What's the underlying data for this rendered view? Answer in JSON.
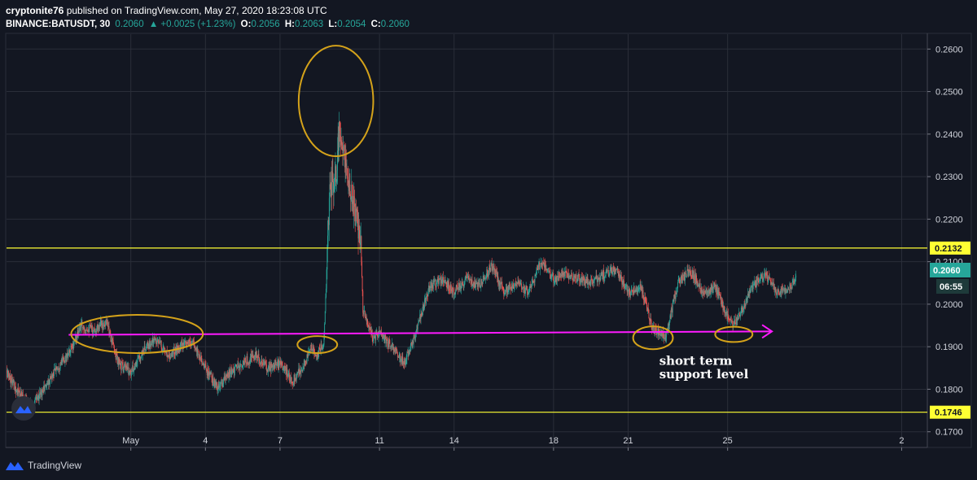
{
  "header": {
    "publisher": "cryptonite76",
    "published_line": "published on TradingView.com, May 27, 2020 18:23:08 UTC",
    "symbol": "BINANCE:BATUSDT, 30",
    "last": "0.2060",
    "change": "▲ +0.0025 (+1.23%)",
    "o_label": "O:",
    "o": "0.2056",
    "h_label": "H:",
    "h": "0.2063",
    "l_label": "L:",
    "l": "0.2054",
    "c_label": "C:",
    "c": "0.2060"
  },
  "footer": {
    "brand": "TradingView"
  },
  "price_tag": {
    "price": "0.2060",
    "countdown": "06:55",
    "color": "#26a69a"
  },
  "colors": {
    "up": "#26a69a",
    "down": "#ef5350",
    "level": "#ffff33",
    "trend": "#ff1aff",
    "circle": "#d4a21a",
    "background": "#131722"
  },
  "chart_data": {
    "type": "candlestick",
    "timeframe": "30",
    "x_range": [
      "2020-04-26",
      "2020-06-02"
    ],
    "ylim": [
      0.1665,
      0.2635
    ],
    "y_ticks": [
      0.17,
      0.18,
      0.19,
      0.2,
      0.21,
      0.22,
      0.23,
      0.24,
      0.25,
      0.26
    ],
    "y_tick_labels": [
      "0.1700",
      "0.1800",
      "0.1900",
      "0.2000",
      "0.2100",
      "0.2200",
      "0.2300",
      "0.2400",
      "0.2500",
      "0.2600"
    ],
    "x_ticks": [
      {
        "date": "2020-05-01",
        "label": "May"
      },
      {
        "date": "2020-05-04",
        "label": "4"
      },
      {
        "date": "2020-05-07",
        "label": "7"
      },
      {
        "date": "2020-05-11",
        "label": "11"
      },
      {
        "date": "2020-05-14",
        "label": "14"
      },
      {
        "date": "2020-05-18",
        "label": "18"
      },
      {
        "date": "2020-05-21",
        "label": "21"
      },
      {
        "date": "2020-05-25",
        "label": "25"
      },
      {
        "date": "2020-06-01",
        "label": "2"
      }
    ],
    "price_path": [
      [
        "2020-04-26 00:00",
        0.184
      ],
      [
        "2020-04-26 12:00",
        0.179
      ],
      [
        "2020-04-27 00:00",
        0.176
      ],
      [
        "2020-04-27 12:00",
        0.18
      ],
      [
        "2020-04-28 00:00",
        0.185
      ],
      [
        "2020-04-28 12:00",
        0.188
      ],
      [
        "2020-04-29 00:00",
        0.195
      ],
      [
        "2020-04-29 12:00",
        0.194
      ],
      [
        "2020-04-30 00:00",
        0.196
      ],
      [
        "2020-04-30 12:00",
        0.186
      ],
      [
        "2020-05-01 00:00",
        0.184
      ],
      [
        "2020-05-01 12:00",
        0.189
      ],
      [
        "2020-05-02 00:00",
        0.192
      ],
      [
        "2020-05-02 12:00",
        0.188
      ],
      [
        "2020-05-03 00:00",
        0.19
      ],
      [
        "2020-05-03 12:00",
        0.191
      ],
      [
        "2020-05-04 00:00",
        0.185
      ],
      [
        "2020-05-04 12:00",
        0.18
      ],
      [
        "2020-05-05 00:00",
        0.184
      ],
      [
        "2020-05-05 12:00",
        0.186
      ],
      [
        "2020-05-06 00:00",
        0.188
      ],
      [
        "2020-05-06 12:00",
        0.185
      ],
      [
        "2020-05-07 00:00",
        0.186
      ],
      [
        "2020-05-07 12:00",
        0.182
      ],
      [
        "2020-05-08 00:00",
        0.186
      ],
      [
        "2020-05-08 06:00",
        0.19
      ],
      [
        "2020-05-08 12:00",
        0.188
      ],
      [
        "2020-05-08 18:00",
        0.191
      ],
      [
        "2020-05-08 22:00",
        0.213
      ],
      [
        "2020-05-09 00:00",
        0.228
      ],
      [
        "2020-05-09 06:00",
        0.23
      ],
      [
        "2020-05-09 09:00",
        0.241
      ],
      [
        "2020-05-09 12:00",
        0.236
      ],
      [
        "2020-05-09 18:00",
        0.23
      ],
      [
        "2020-05-10 00:00",
        0.222
      ],
      [
        "2020-05-10 06:00",
        0.216
      ],
      [
        "2020-05-10 08:00",
        0.199
      ],
      [
        "2020-05-10 12:00",
        0.196
      ],
      [
        "2020-05-10 18:00",
        0.192
      ],
      [
        "2020-05-11 00:00",
        0.193
      ],
      [
        "2020-05-11 12:00",
        0.19
      ],
      [
        "2020-05-12 00:00",
        0.186
      ],
      [
        "2020-05-12 12:00",
        0.194
      ],
      [
        "2020-05-13 00:00",
        0.204
      ],
      [
        "2020-05-13 12:00",
        0.206
      ],
      [
        "2020-05-14 00:00",
        0.203
      ],
      [
        "2020-05-14 12:00",
        0.206
      ],
      [
        "2020-05-15 00:00",
        0.204
      ],
      [
        "2020-05-15 12:00",
        0.209
      ],
      [
        "2020-05-16 00:00",
        0.203
      ],
      [
        "2020-05-16 12:00",
        0.205
      ],
      [
        "2020-05-17 00:00",
        0.203
      ],
      [
        "2020-05-17 12:00",
        0.21
      ],
      [
        "2020-05-18 00:00",
        0.206
      ],
      [
        "2020-05-18 12:00",
        0.207
      ],
      [
        "2020-05-19 00:00",
        0.206
      ],
      [
        "2020-05-19 12:00",
        0.205
      ],
      [
        "2020-05-20 00:00",
        0.207
      ],
      [
        "2020-05-20 12:00",
        0.208
      ],
      [
        "2020-05-21 00:00",
        0.203
      ],
      [
        "2020-05-21 12:00",
        0.204
      ],
      [
        "2020-05-22 00:00",
        0.194
      ],
      [
        "2020-05-22 12:00",
        0.192
      ],
      [
        "2020-05-23 00:00",
        0.205
      ],
      [
        "2020-05-23 12:00",
        0.208
      ],
      [
        "2020-05-24 00:00",
        0.203
      ],
      [
        "2020-05-24 12:00",
        0.204
      ],
      [
        "2020-05-25 00:00",
        0.197
      ],
      [
        "2020-05-25 06:00",
        0.195
      ],
      [
        "2020-05-25 12:00",
        0.198
      ],
      [
        "2020-05-26 00:00",
        0.204
      ],
      [
        "2020-05-26 12:00",
        0.207
      ],
      [
        "2020-05-27 00:00",
        0.203
      ],
      [
        "2020-05-27 12:00",
        0.204
      ],
      [
        "2020-05-27 18:00",
        0.206
      ]
    ],
    "horizontal_levels": [
      {
        "price": 0.2132,
        "label": "0.2132"
      },
      {
        "price": 0.1746,
        "label": "0.1746"
      }
    ],
    "trend_arrow": {
      "from": [
        "2020-04-28 12:00",
        0.1928
      ],
      "to": [
        "2020-05-26 18:00",
        0.1936
      ]
    },
    "annotations": [
      {
        "type": "ellipse",
        "center": [
          "2020-05-01 06:00",
          0.193
        ],
        "rx_days": 2.65,
        "ry": 0.0045
      },
      {
        "type": "ellipse",
        "center": [
          "2020-05-08 12:00",
          0.1905
        ],
        "rx_days": 0.8,
        "ry": 0.002
      },
      {
        "type": "ellipse",
        "center": [
          "2020-05-09 06:00",
          0.2478
        ],
        "rx_days": 1.5,
        "ry": 0.013
      },
      {
        "type": "ellipse",
        "center": [
          "2020-05-22 00:00",
          0.1921
        ],
        "rx_days": 0.8,
        "ry": 0.0027
      },
      {
        "type": "ellipse",
        "center": [
          "2020-05-25 06:00",
          0.1929
        ],
        "rx_days": 0.75,
        "ry": 0.0018
      }
    ],
    "text_annotations": [
      {
        "text": "short term",
        "at": [
          "2020-05-22 06:00",
          0.1857
        ]
      },
      {
        "text": "support  level",
        "at": [
          "2020-05-22 06:00",
          0.1826
        ]
      }
    ]
  }
}
